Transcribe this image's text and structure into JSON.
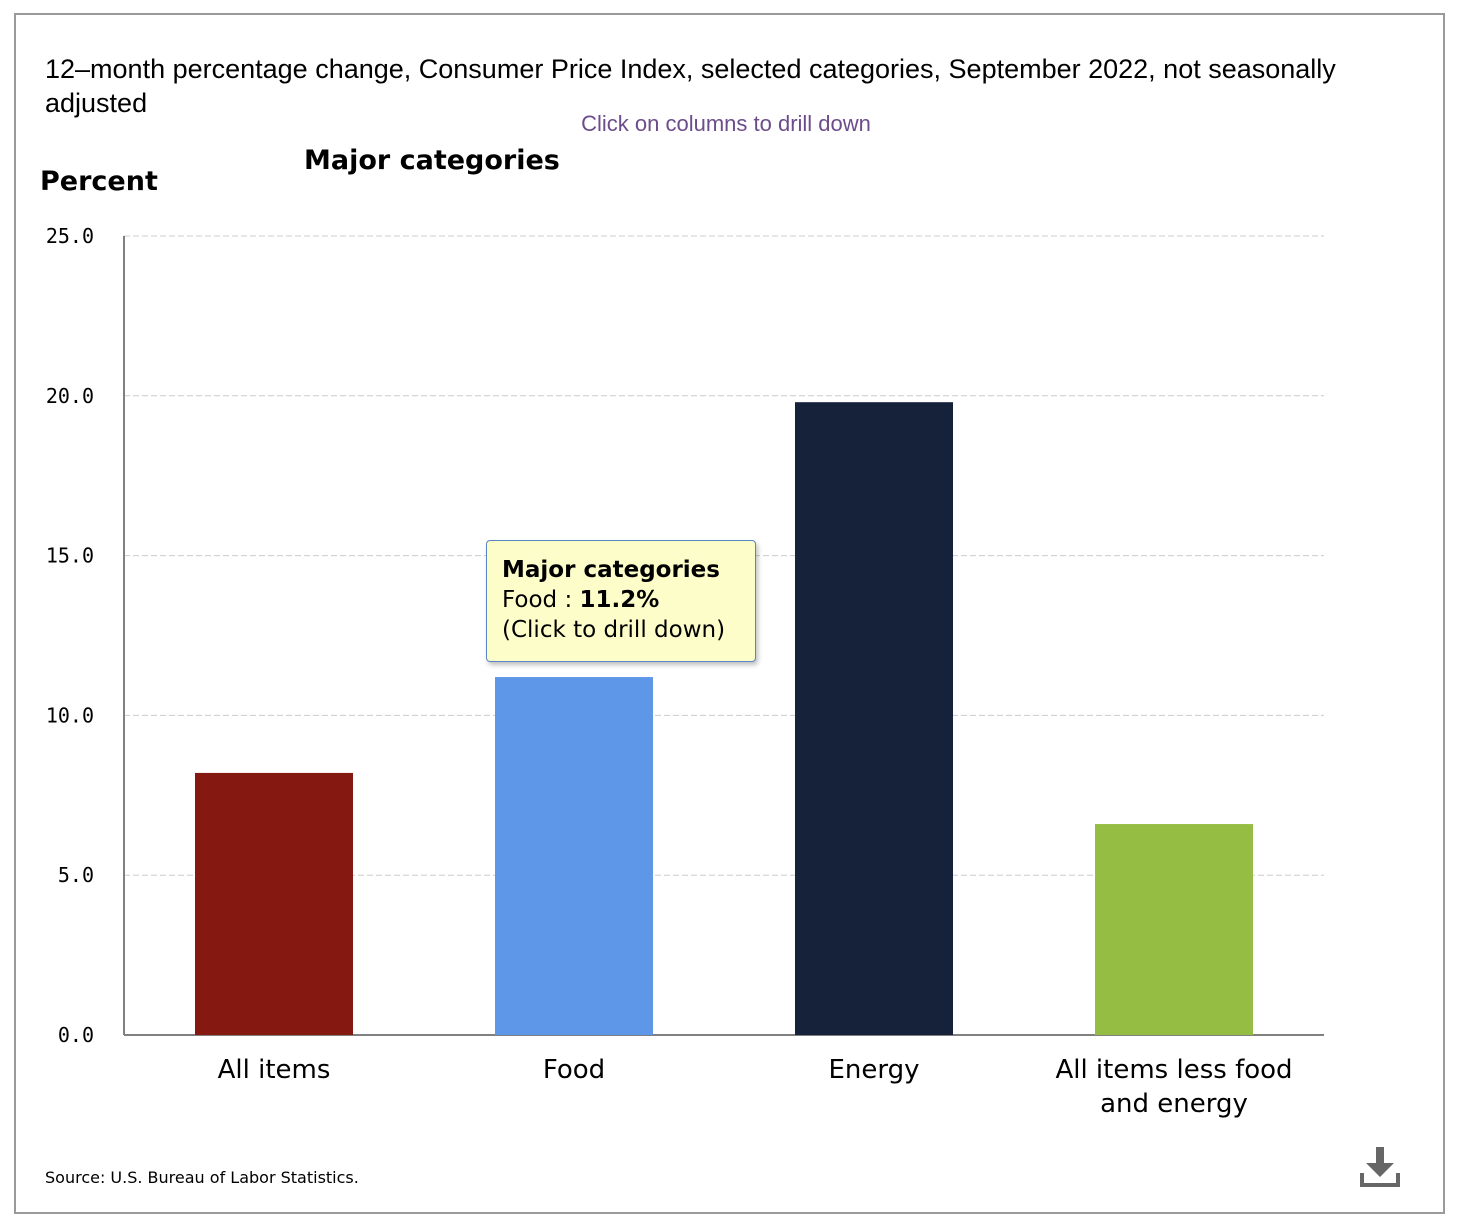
{
  "title": "12–month percentage change, Consumer Price Index, selected categories, September 2022, not seasonally adjusted",
  "subtitle": "Click on columns to drill down",
  "chart_heading": "Major categories",
  "y_axis_label": "Percent",
  "source": "Source: U.S. Bureau of Labor Statistics.",
  "download_icon": "download-icon",
  "tooltip": {
    "title": "Major categories",
    "category": "Food",
    "separator": " : ",
    "value": "11.2%",
    "hint": "(Click to drill down)"
  },
  "chart_data": {
    "type": "bar",
    "title": "Major categories",
    "ylabel": "Percent",
    "xlabel": "",
    "ylim": [
      0,
      25
    ],
    "yticks": [
      "0.0",
      "5.0",
      "10.0",
      "15.0",
      "20.0",
      "25.0"
    ],
    "grid": true,
    "categories": [
      [
        "All items"
      ],
      [
        "Food"
      ],
      [
        "Energy"
      ],
      [
        "All items less food",
        "and energy"
      ]
    ],
    "values": [
      8.2,
      11.2,
      19.8,
      6.6
    ],
    "colors": [
      "#851912",
      "#5e97e8",
      "#16223a",
      "#95bc43"
    ]
  }
}
